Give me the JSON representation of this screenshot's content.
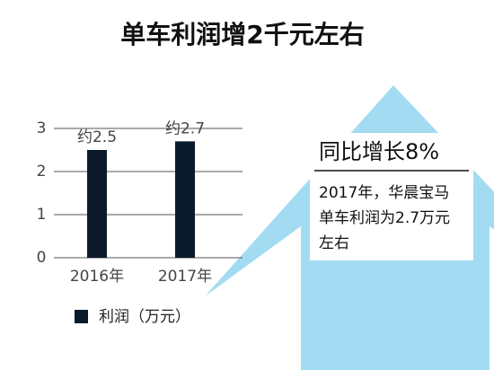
{
  "chart_data": {
    "type": "bar",
    "title": "单车利润增2千元左右",
    "categories": [
      "2016年",
      "2017年"
    ],
    "series": [
      {
        "name": "利润（万元）",
        "color": "#0b1a2b",
        "values": [
          2.5,
          2.7
        ],
        "value_labels": [
          "约2.5",
          "约2.7"
        ]
      }
    ],
    "ylim": [
      0,
      3
    ],
    "yticks": [
      0,
      1,
      2,
      3
    ],
    "grid": true,
    "annotation": {
      "headline": "同比增长8%",
      "lines": [
        "2017年，华晨宝马",
        "单车利润为2.7万元",
        "左右"
      ]
    }
  }
}
